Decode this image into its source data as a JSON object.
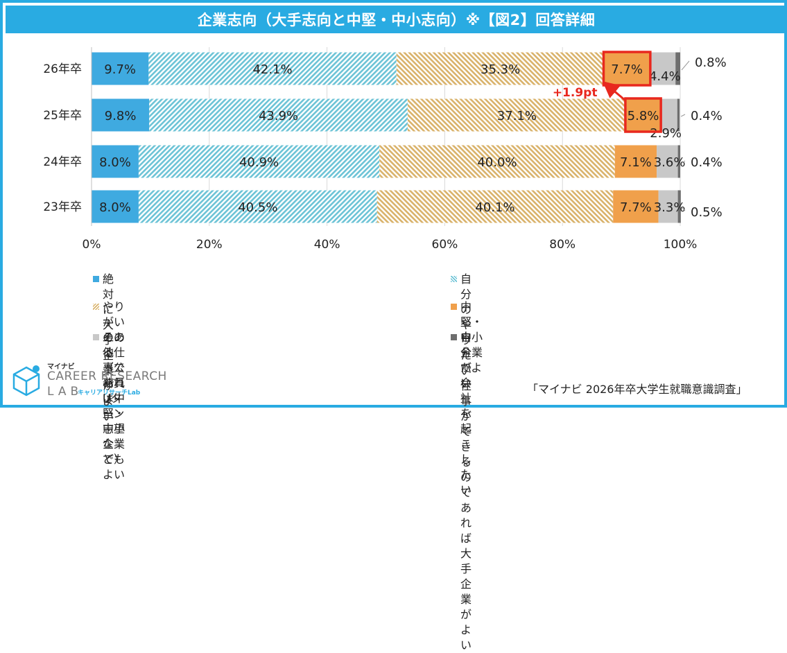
{
  "title": "企業志向（大手志向と中堅・中小志向）※【図2】回答詳細",
  "chart_data": {
    "type": "bar",
    "orientation": "horizontal",
    "stacked": true,
    "categories": [
      "26年卒",
      "25年卒",
      "24年卒",
      "23年卒"
    ],
    "xlim": [
      0,
      100
    ],
    "x_ticks": [
      "0%",
      "20%",
      "40%",
      "60%",
      "80%",
      "100%"
    ],
    "grid": true,
    "legend_position": "bottom",
    "series": [
      {
        "name": "絶対に大手企業がよい",
        "color": "#3FAAE0",
        "pattern": "solid",
        "values": [
          9.7,
          9.8,
          8.0,
          8.0
        ],
        "labels": [
          "9.7%",
          "9.8%",
          "8.0%",
          "8.0%"
        ]
      },
      {
        "name": "自分のやりたい仕事ができるのであれば\n大手企業がよい",
        "color": "#6CC3D6",
        "pattern": "hatch-teal",
        "values": [
          42.1,
          43.9,
          40.9,
          40.5
        ],
        "labels": [
          "42.1%",
          "43.9%",
          "40.9%",
          "40.5%"
        ]
      },
      {
        "name": "やりがいのある仕事であれば中堅・中小企業でもよい",
        "color": "#D9B26A",
        "pattern": "hatch-tan",
        "values": [
          35.3,
          37.1,
          40.0,
          40.1
        ],
        "labels": [
          "35.3%",
          "37.1%",
          "40.0%",
          "40.1%"
        ]
      },
      {
        "name": "中堅・中小企業がよい",
        "color": "#F0A04B",
        "pattern": "solid",
        "values": [
          7.7,
          5.8,
          7.1,
          7.7
        ],
        "labels": [
          "7.7%",
          "5.8%",
          "7.1%",
          "7.7%"
        ]
      },
      {
        "name": "その他（公務員　Uターン志望など）",
        "color": "#C8C8C8",
        "pattern": "solid",
        "values": [
          4.4,
          2.9,
          3.6,
          3.3
        ],
        "labels": [
          "4.4%",
          "2.9%",
          "3.6%",
          "3.3%"
        ]
      },
      {
        "name": "自分で会社を起こしたい",
        "color": "#6E6E6E",
        "pattern": "solid",
        "values": [
          0.8,
          0.4,
          0.4,
          0.5
        ],
        "labels": [
          "0.8%",
          "0.4%",
          "0.4%",
          "0.5%"
        ]
      }
    ],
    "annotations": [
      {
        "text": "+1.9pt",
        "color": "#E8281E",
        "description_from": "25年卒",
        "to": "26年卒"
      }
    ],
    "highlight_color": "#E8281E"
  },
  "logo": {
    "small": "マイナビ",
    "line1": "CAREER RESEARCH",
    "line2": "LAB",
    "sub": "キャリアリサーチLab"
  },
  "source": "「マイナビ 2026年卒大学生就職意識調査」"
}
